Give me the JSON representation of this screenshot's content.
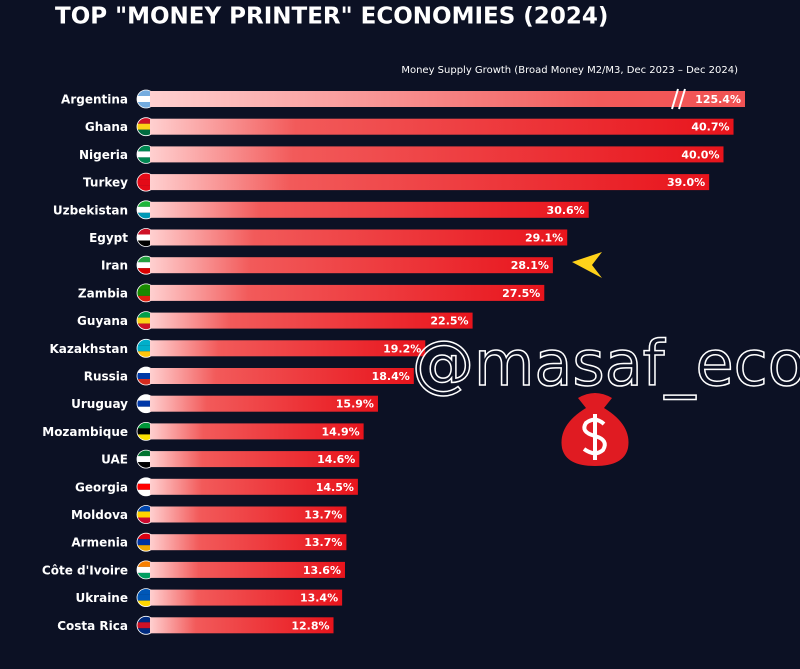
{
  "chart_data": {
    "type": "bar",
    "orientation": "horizontal",
    "title": "TOP \"MONEY PRINTER\" ECONOMIES (2024)",
    "subtitle": "Money Supply Growth (Broad Money M2/M3, Dec 2023 – Dec 2024)",
    "watermark": "@masaf_eco",
    "categories": [
      "Argentina",
      "Ghana",
      "Nigeria",
      "Turkey",
      "Uzbekistan",
      "Egypt",
      "Iran",
      "Zambia",
      "Guyana",
      "Kazakhstan",
      "Russia",
      "Uruguay",
      "Mozambique",
      "UAE",
      "Georgia",
      "Moldova",
      "Armenia",
      "Côte d'Ivoire",
      "Ukraine",
      "Costa Rica"
    ],
    "values": [
      125.4,
      40.7,
      40.0,
      39.0,
      30.6,
      29.1,
      28.1,
      27.5,
      22.5,
      19.2,
      18.4,
      15.9,
      14.9,
      14.6,
      14.5,
      13.7,
      13.7,
      13.6,
      13.4,
      12.8
    ],
    "value_labels": [
      "125.4%",
      "40.7%",
      "40.0%",
      "39.0%",
      "30.6%",
      "29.1%",
      "28.1%",
      "27.5%",
      "22.5%",
      "19.2%",
      "18.4%",
      "15.9%",
      "14.9%",
      "14.6%",
      "14.5%",
      "13.7%",
      "13.7%",
      "13.6%",
      "13.4%",
      "12.8%"
    ],
    "color": "#e8141c",
    "xlim": [
      0,
      41.5
    ],
    "broken_bars": true
  }
}
